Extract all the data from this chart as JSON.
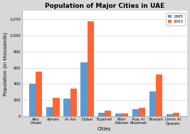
{
  "title": "Population of Major Cities in UAE",
  "xlabel": "Cities",
  "ylabel": "Population (in thousands)",
  "categories": [
    "Abu\nDhabi",
    "Ajman",
    "Al Ain",
    "Dubai",
    "Fujairah",
    "Khor\nFakkan",
    "Ras Al\nKhaimah",
    "Sharjah",
    "Umm Al\nQuwain"
  ],
  "values_1995": [
    400,
    120,
    220,
    670,
    50,
    35,
    90,
    310,
    30
  ],
  "values_2003": [
    550,
    225,
    345,
    1175,
    70,
    40,
    110,
    520,
    45
  ],
  "color_1995": "#5B9BD5",
  "color_2003": "#FF6633",
  "legend_labels": [
    "1995",
    "2003"
  ],
  "ylim": [
    0,
    1300
  ],
  "yticks": [
    0,
    200,
    400,
    600,
    800,
    1000,
    1200
  ],
  "yticklabels": [
    "0",
    "200",
    "400",
    "600",
    "800",
    "1,000",
    "1,200"
  ],
  "background_color": "#D8D8D8",
  "plot_bg_color": "#FFFFFF",
  "title_fontsize": 6.5,
  "axis_label_fontsize": 5,
  "tick_fontsize": 4,
  "legend_fontsize": 4,
  "bar_width": 0.38
}
